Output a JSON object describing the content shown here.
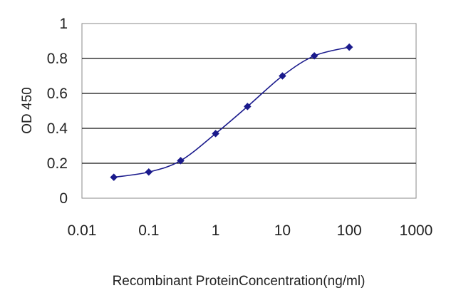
{
  "chart_data": {
    "type": "line",
    "title": "",
    "xlabel": "Recombinant ProteinConcentration(ng/ml)",
    "ylabel": "OD 450",
    "x_scale": "log",
    "xlim": [
      0.01,
      1000
    ],
    "ylim": [
      0,
      1
    ],
    "x_ticks": [
      0.01,
      0.1,
      1,
      10,
      100,
      1000
    ],
    "x_tick_labels": [
      "0.01",
      "0.1",
      "1",
      "10",
      "100",
      "1000"
    ],
    "y_ticks": [
      0,
      0.2,
      0.4,
      0.6,
      0.8,
      1
    ],
    "y_tick_labels": [
      "0",
      "0.2",
      "0.4",
      "0.6",
      "0.8",
      "1"
    ],
    "grid": "horizontal",
    "legend": "none",
    "series": [
      {
        "x": [
          0.03,
          0.1,
          0.3,
          1,
          3,
          10,
          30,
          100
        ],
        "y": [
          0.12,
          0.15,
          0.215,
          0.37,
          0.525,
          0.7,
          0.815,
          0.865
        ],
        "color": "#1a1a8c",
        "marker": "diamond"
      }
    ],
    "colors": {
      "plot_background": "#ffffff",
      "plot_border": "#888888",
      "gridline": "#111111",
      "series": "#1a1a8c"
    }
  }
}
